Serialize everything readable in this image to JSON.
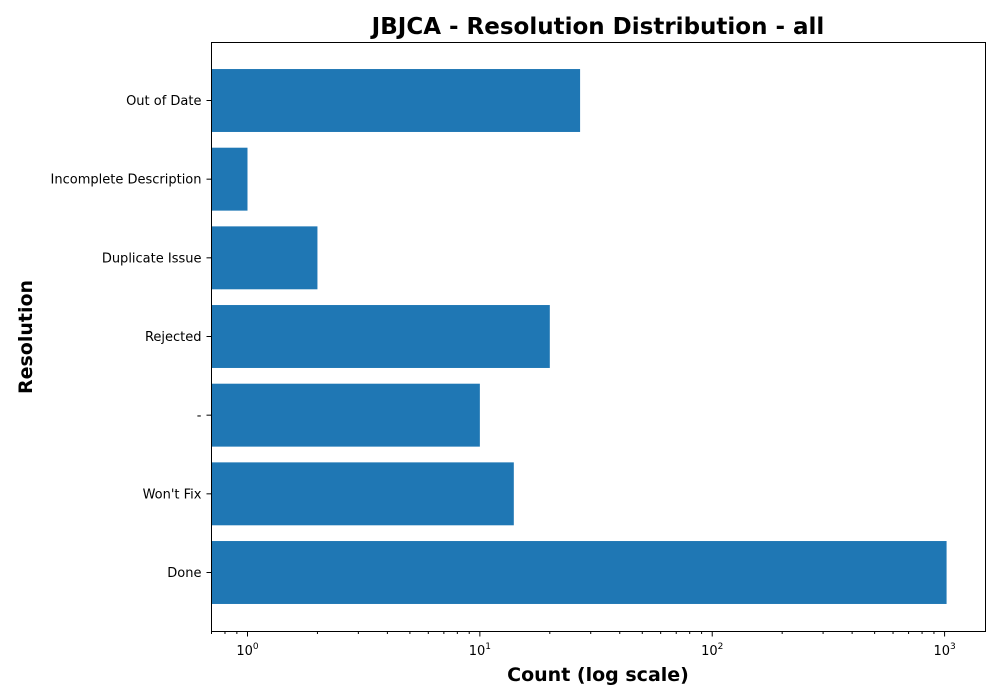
{
  "chart_data": {
    "type": "bar",
    "orientation": "horizontal",
    "title": "JBJCA - Resolution Distribution - all",
    "xlabel": "Count (log scale)",
    "ylabel": "Resolution",
    "x_scale": "log",
    "xlim": [
      0.7,
      1500
    ],
    "x_ticks": [
      {
        "base": "10",
        "exp": "0"
      },
      {
        "base": "10",
        "exp": "1"
      },
      {
        "base": "10",
        "exp": "2"
      },
      {
        "base": "10",
        "exp": "3"
      }
    ],
    "categories": [
      "Done",
      "Won't Fix",
      "-",
      "Rejected",
      "Duplicate Issue",
      "Incomplete Description",
      "Out of Date"
    ],
    "values": [
      1020,
      14,
      10,
      20,
      2,
      1,
      27
    ],
    "color": "#1f77b4",
    "grid": false,
    "legend": "none"
  }
}
